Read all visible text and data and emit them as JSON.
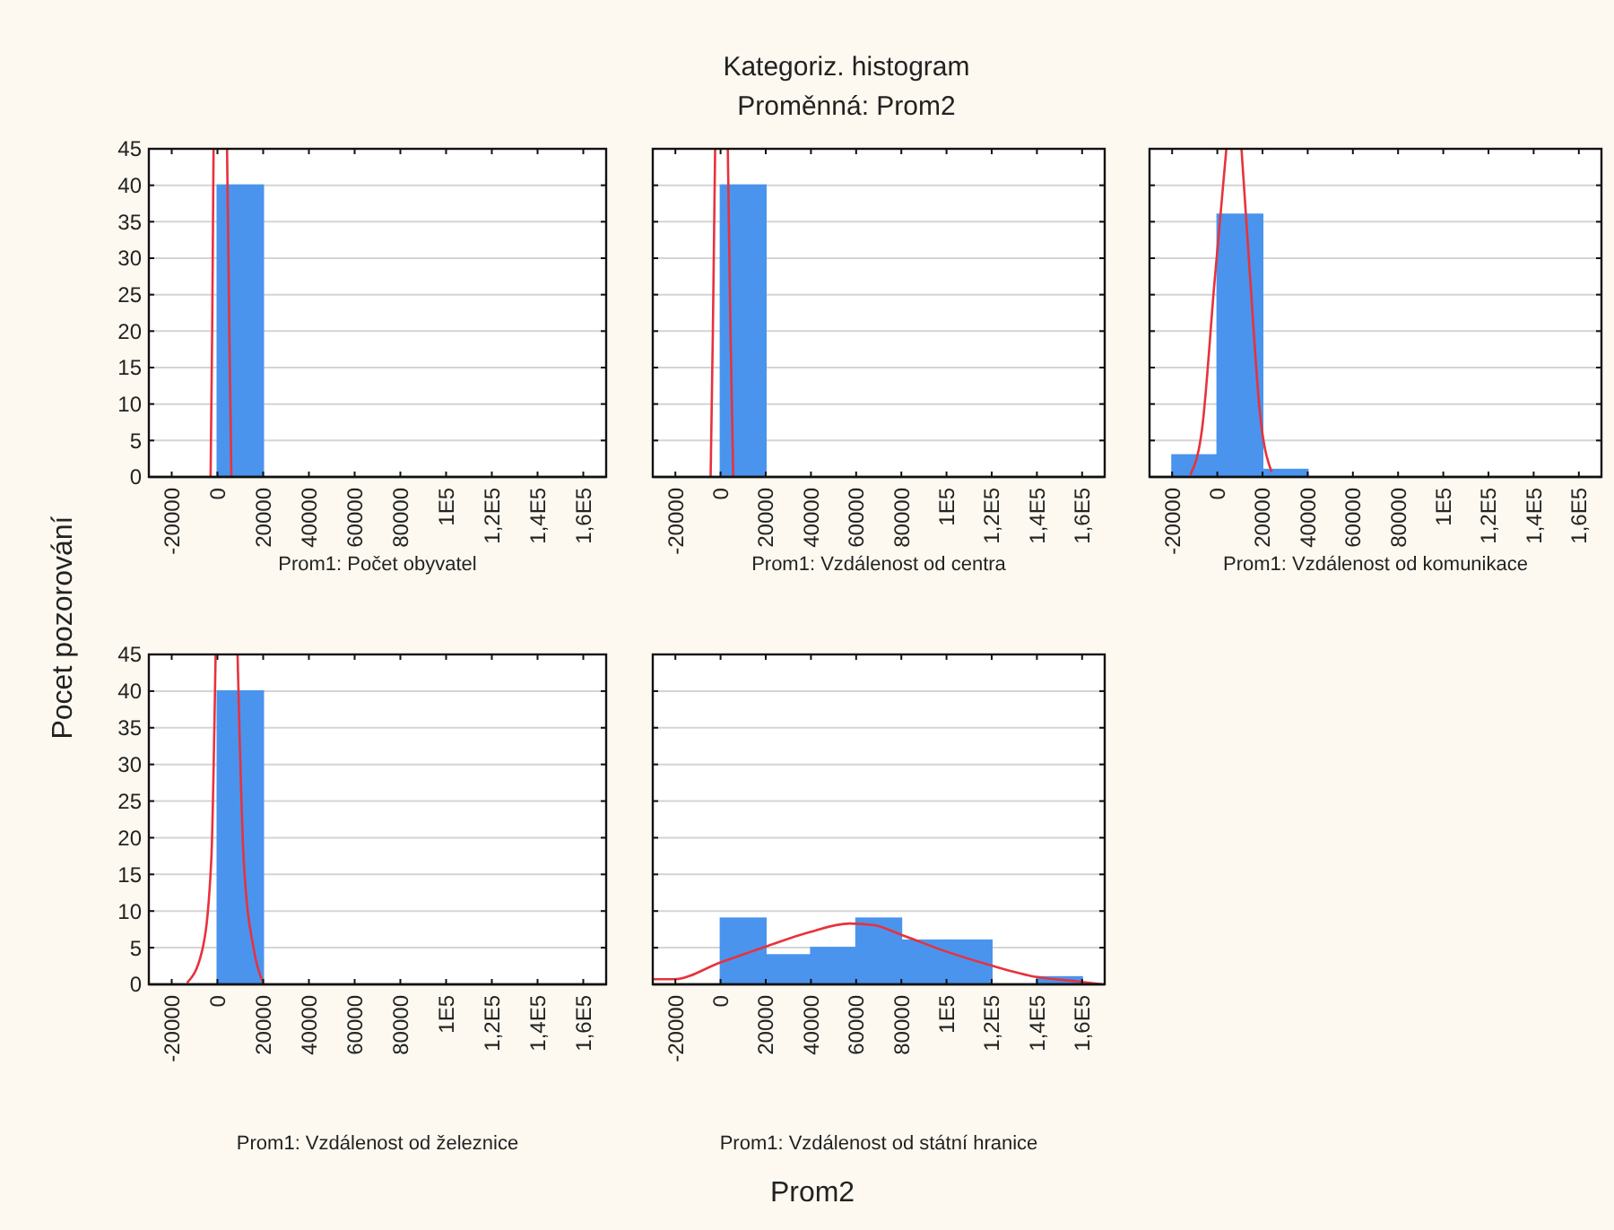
{
  "chart_data": [
    {
      "type": "histogram",
      "ylabel": "Pocet pozorování",
      "xlabel": "Prom1: Počet obyvatel",
      "bins": [
        0,
        20000
      ],
      "xlim": [
        -30000,
        170000
      ],
      "xticks": [
        -20000,
        0,
        20000,
        40000,
        60000,
        80000,
        {
          "value": 100000,
          "label": "1E5"
        },
        {
          "value": 120000,
          "label": "1,2E5"
        },
        {
          "value": 140000,
          "label": "1,4E5"
        },
        {
          "value": 160000,
          "label": "1,6E5"
        }
      ],
      "ylim": [
        0,
        45
      ],
      "yticks": [
        0,
        5,
        10,
        15,
        20,
        25,
        30,
        35,
        40,
        45
      ],
      "grid": "y",
      "series": [
        {
          "type": "histogram",
          "color": "#4a94ee",
          "values": [
            40
          ]
        },
        {
          "type": "line",
          "color": "#e8323c",
          "x": [
            -3000,
            -2300,
            -1700,
            null,
            4200,
            5200,
            6100
          ],
          "values": [
            0,
            20,
            45,
            null,
            45,
            20,
            0
          ]
        }
      ]
    },
    {
      "type": "histogram",
      "title": "Kategoriz. histogram",
      "subtitle": "Proměnná: Prom2",
      "xlabel": "Prom1: Vzdálenost od centra",
      "tick_labels": "x",
      "bins": [
        0,
        20000
      ],
      "xlim": [
        -30000,
        170000
      ],
      "xticks": [
        -20000,
        0,
        20000,
        40000,
        60000,
        80000,
        {
          "value": 100000,
          "label": "1E5"
        },
        {
          "value": 120000,
          "label": "1,2E5"
        },
        {
          "value": 140000,
          "label": "1,4E5"
        },
        {
          "value": 160000,
          "label": "1,6E5"
        }
      ],
      "ylim": [
        0,
        45
      ],
      "yticks": [
        0,
        5,
        10,
        15,
        20,
        25,
        30,
        35,
        40,
        45
      ],
      "grid": "y",
      "series": [
        {
          "type": "histogram",
          "color": "#4a94ee",
          "values": [
            40
          ]
        },
        {
          "type": "line",
          "color": "#e8323c",
          "x": [
            -4400,
            -3400,
            -2400,
            null,
            3200,
            4400,
            5600
          ],
          "values": [
            0,
            20,
            45,
            null,
            45,
            20,
            0
          ]
        }
      ]
    },
    {
      "type": "histogram",
      "xlabel": "Prom1: Vzdálenost od komunikace",
      "tick_labels": "x",
      "bins": [
        -20000,
        0,
        20000,
        40000
      ],
      "xlim": [
        -30000,
        170000
      ],
      "xticks": [
        -20000,
        0,
        20000,
        40000,
        60000,
        80000,
        {
          "value": 100000,
          "label": "1E5"
        },
        {
          "value": 120000,
          "label": "1,2E5"
        },
        {
          "value": 140000,
          "label": "1,4E5"
        },
        {
          "value": 160000,
          "label": "1,6E5"
        }
      ],
      "ylim": [
        0,
        45
      ],
      "yticks": [
        0,
        5,
        10,
        15,
        20,
        25,
        30,
        35,
        40,
        45
      ],
      "grid": "y",
      "series": [
        {
          "type": "histogram",
          "color": "#4a94ee",
          "values": [
            3,
            36,
            1
          ]
        },
        {
          "type": "line",
          "color": "#e8323c",
          "x": [
            -12000,
            -6700,
            -1300,
            4000,
            null,
            10700,
            14700,
            18700,
            24000
          ],
          "values": [
            0.3,
            6.7,
            26.5,
            45,
            null,
            45,
            26.5,
            9.3,
            0.7
          ]
        }
      ]
    },
    {
      "type": "histogram",
      "xlabel": "Prom1: Vzdálenost od železnice",
      "bins": [
        0,
        20000
      ],
      "xlim": [
        -30000,
        170000
      ],
      "xticks": [
        -20000,
        0,
        20000,
        40000,
        60000,
        80000,
        {
          "value": 100000,
          "label": "1E5"
        },
        {
          "value": 120000,
          "label": "1,2E5"
        },
        {
          "value": 140000,
          "label": "1,4E5"
        },
        {
          "value": 160000,
          "label": "1,6E5"
        }
      ],
      "ylim": [
        0,
        45
      ],
      "yticks": [
        0,
        5,
        10,
        15,
        20,
        25,
        30,
        35,
        40,
        45
      ],
      "grid": "y",
      "series": [
        {
          "type": "histogram",
          "color": "#4a94ee",
          "values": [
            40
          ]
        },
        {
          "type": "line",
          "color": "#e8323c",
          "x": [
            -13300,
            -6700,
            -2700,
            -800,
            null,
            8800,
            11500,
            16000,
            20000
          ],
          "values": [
            0.2,
            4.6,
            16.9,
            45,
            null,
            45,
            16.9,
            4.6,
            0.2
          ]
        }
      ]
    },
    {
      "type": "histogram",
      "xlabel": "Prom1: Vzdálenost od státní hranice",
      "annotations": [
        "Prom2"
      ],
      "tick_labels": "x",
      "bins": [
        0,
        20000,
        40000,
        60000,
        80000,
        100000,
        120000,
        140000,
        160000
      ],
      "xlim": [
        -30000,
        170000
      ],
      "xticks": [
        -20000,
        0,
        20000,
        40000,
        60000,
        80000,
        {
          "value": 100000,
          "label": "1E5"
        },
        {
          "value": 120000,
          "label": "1,2E5"
        },
        {
          "value": 140000,
          "label": "1,4E5"
        },
        {
          "value": 160000,
          "label": "1,6E5"
        }
      ],
      "ylim": [
        0,
        45
      ],
      "yticks": [
        0,
        5,
        10,
        15,
        20,
        25,
        30,
        35,
        40,
        45
      ],
      "grid": "y",
      "series": [
        {
          "type": "histogram",
          "color": "#4a94ee",
          "values": [
            9,
            4,
            5,
            9,
            6,
            6,
            0,
            1
          ]
        },
        {
          "type": "line",
          "color": "#e8323c",
          "x": [
            -29900,
            -20800,
            0,
            19500,
            39000,
            57100,
            67500,
            80500,
            98700,
            119500,
            140000,
            158000,
            168800
          ],
          "values": [
            0.7,
            0.7,
            3.0,
            5.1,
            7.1,
            8.3,
            8.1,
            6.7,
            4.6,
            2.6,
            1.0,
            0.4,
            0
          ]
        }
      ]
    }
  ]
}
